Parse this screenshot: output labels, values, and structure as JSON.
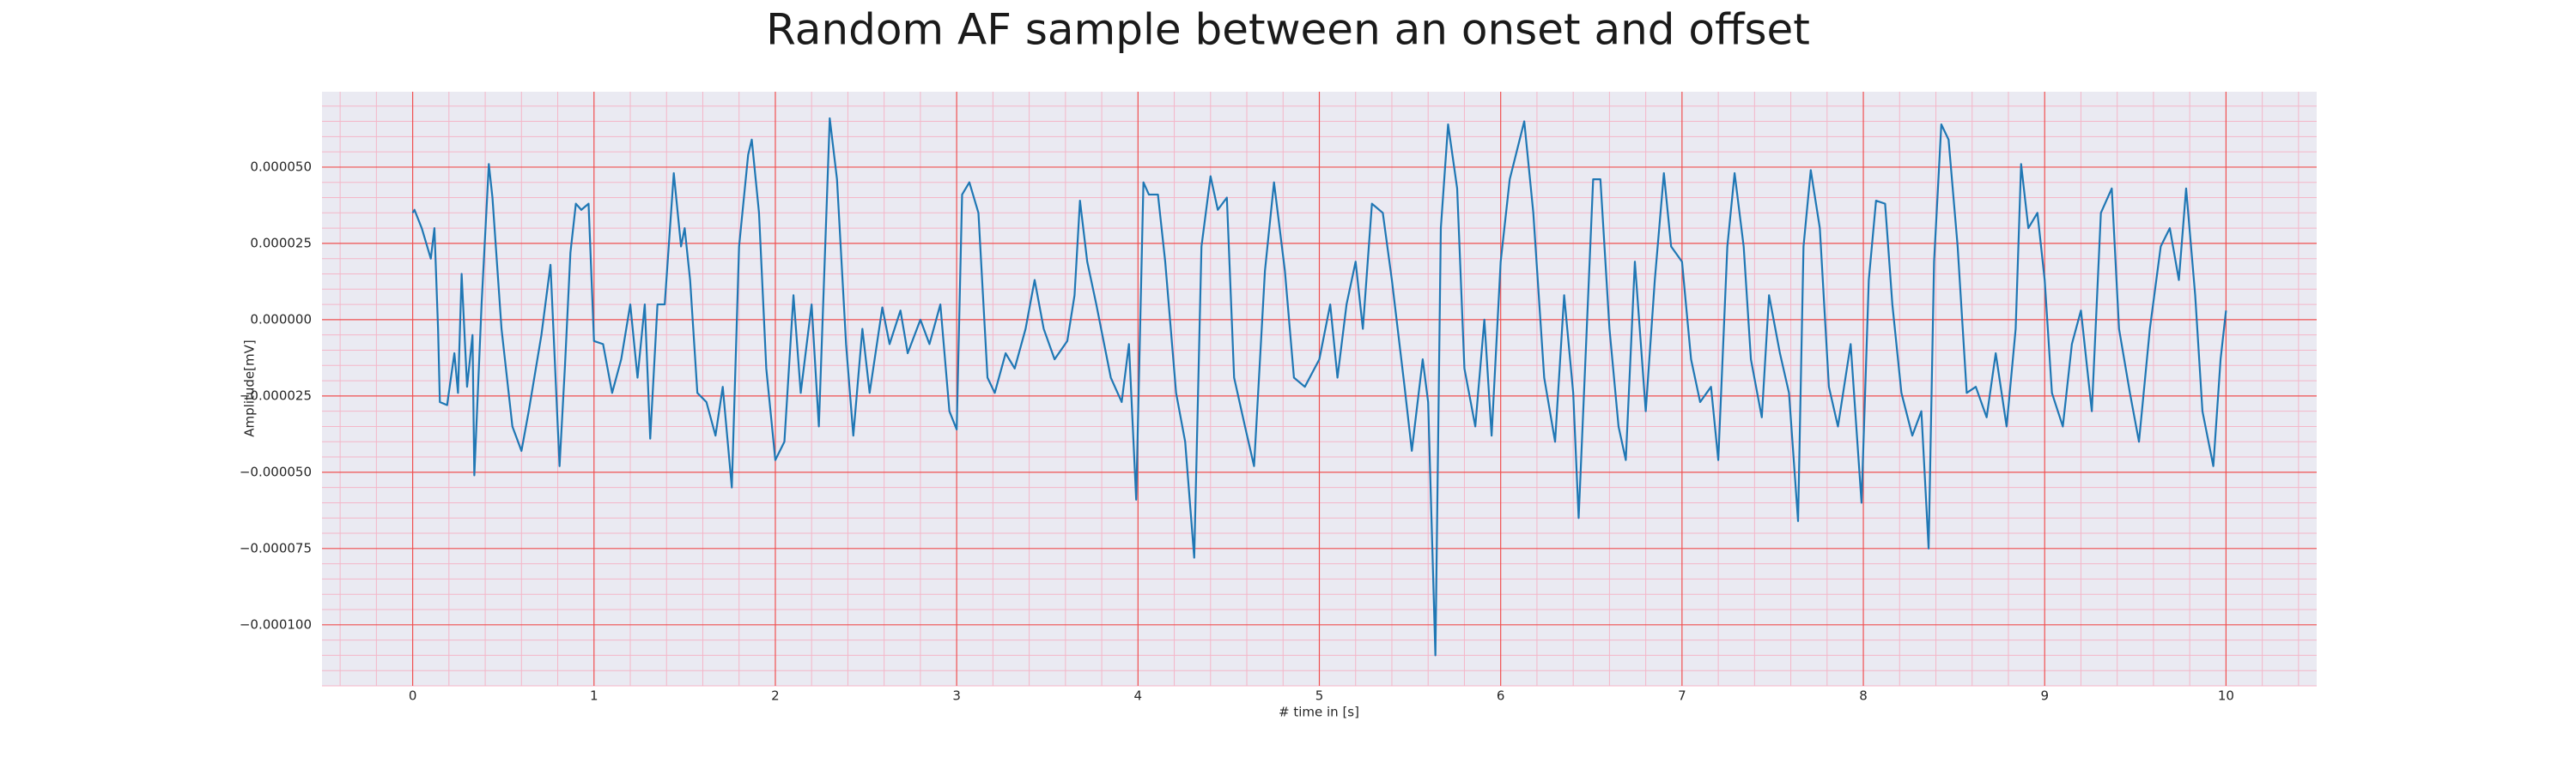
{
  "chart_data": {
    "type": "line",
    "title": "Random AF sample between an onset and offset",
    "xlabel": "# time in [s]",
    "ylabel": "Amplitude[mV]",
    "color": "#1f77b4",
    "grid": true,
    "minor_grid": true,
    "xlim": [
      -0.5,
      10.5
    ],
    "ylim": [
      -0.00012,
      7.47e-05
    ],
    "xticks": [
      0,
      1,
      2,
      3,
      4,
      5,
      6,
      7,
      8,
      9,
      10
    ],
    "yticks": [
      {
        "value": -0.0001,
        "label": "−0.000100"
      },
      {
        "value": -7.5e-05,
        "label": "−0.000075"
      },
      {
        "value": -5e-05,
        "label": "−0.000050"
      },
      {
        "value": -2.5e-05,
        "label": "−0.000025"
      },
      {
        "value": 0,
        "label": "0.000000"
      },
      {
        "value": 2.5e-05,
        "label": "0.000025"
      },
      {
        "value": 5e-05,
        "label": "0.000050"
      }
    ],
    "x": [
      0,
      0.01,
      0.05,
      0.1,
      0.12,
      0.14,
      0.15,
      0.19,
      0.23,
      0.25,
      0.27,
      0.3,
      0.33,
      0.34,
      0.38,
      0.42,
      0.44,
      0.49,
      0.55,
      0.6,
      0.64,
      0.71,
      0.76,
      0.81,
      0.84,
      0.87,
      0.9,
      0.93,
      0.97,
      1.0,
      1.05,
      1.1,
      1.15,
      1.2,
      1.24,
      1.28,
      1.31,
      1.35,
      1.39,
      1.44,
      1.48,
      1.5,
      1.53,
      1.57,
      1.62,
      1.67,
      1.71,
      1.76,
      1.8,
      1.85,
      1.87,
      1.91,
      1.95,
      2.0,
      2.05,
      2.1,
      2.14,
      2.2,
      2.24,
      2.3,
      2.34,
      2.39,
      2.43,
      2.48,
      2.52,
      2.59,
      2.63,
      2.69,
      2.73,
      2.8,
      2.85,
      2.91,
      2.96,
      3.0,
      3.03,
      3.07,
      3.12,
      3.17,
      3.21,
      3.27,
      3.32,
      3.38,
      3.43,
      3.48,
      3.54,
      3.61,
      3.65,
      3.68,
      3.72,
      3.77,
      3.85,
      3.91,
      3.95,
      3.99,
      4.03,
      4.06,
      4.11,
      4.15,
      4.21,
      4.26,
      4.31,
      4.35,
      4.4,
      4.44,
      4.49,
      4.53,
      4.59,
      4.64,
      4.7,
      4.75,
      4.81,
      4.86,
      4.92,
      5.0,
      5.06,
      5.1,
      5.15,
      5.2,
      5.24,
      5.29,
      5.35,
      5.4,
      5.47,
      5.51,
      5.57,
      5.6,
      5.64,
      5.67,
      5.71,
      5.76,
      5.8,
      5.86,
      5.91,
      5.95,
      6.0,
      6.05,
      6.13,
      6.18,
      6.24,
      6.3,
      6.35,
      6.4,
      6.43,
      6.51,
      6.55,
      6.6,
      6.65,
      6.69,
      6.74,
      6.8,
      6.85,
      6.9,
      6.94,
      7.0,
      7.05,
      7.1,
      7.16,
      7.2,
      7.25,
      7.29,
      7.34,
      7.38,
      7.44,
      7.48,
      7.54,
      7.59,
      7.64,
      7.67,
      7.71,
      7.76,
      7.81,
      7.86,
      7.93,
      7.99,
      8.03,
      8.07,
      8.12,
      8.16,
      8.21,
      8.27,
      8.32,
      8.36,
      8.39,
      8.43,
      8.47,
      8.52,
      8.57,
      8.62,
      8.68,
      8.73,
      8.79,
      8.84,
      8.87,
      8.91,
      8.96,
      9.0,
      9.04,
      9.1,
      9.15,
      9.2,
      9.26,
      9.31,
      9.37,
      9.41,
      9.47,
      9.52,
      9.58,
      9.64,
      9.69,
      9.74,
      9.78,
      9.83,
      9.87,
      9.93,
      9.97,
      10.0
    ],
    "values": [
      3.5e-05,
      3.6e-05,
      3e-05,
      2e-05,
      3e-05,
      -3e-06,
      -2.7e-05,
      -2.8e-05,
      -1.1e-05,
      -2.4e-05,
      1.5e-05,
      -2.2e-05,
      -5e-06,
      -5.1e-05,
      5e-06,
      5.1e-05,
      4e-05,
      -3e-06,
      -3.5e-05,
      -4.3e-05,
      -3e-05,
      -5e-06,
      1.8e-05,
      -4.8e-05,
      -1.5e-05,
      2.2e-05,
      3.8e-05,
      3.6e-05,
      3.8e-05,
      -7e-06,
      -8e-06,
      -2.4e-05,
      -1.3e-05,
      5e-06,
      -1.9e-05,
      5e-06,
      -3.9e-05,
      5e-06,
      5e-06,
      4.8e-05,
      2.4e-05,
      3e-05,
      1.3e-05,
      -2.4e-05,
      -2.7e-05,
      -3.8e-05,
      -2.2e-05,
      -5.5e-05,
      2.4e-05,
      5.4e-05,
      5.9e-05,
      3.5e-05,
      -1.6e-05,
      -4.6e-05,
      -4e-05,
      8e-06,
      -2.4e-05,
      5e-06,
      -3.5e-05,
      6.6e-05,
      4.6e-05,
      -8e-06,
      -3.8e-05,
      -3e-06,
      -2.4e-05,
      4e-06,
      -8e-06,
      3e-06,
      -1.1e-05,
      0,
      -8e-06,
      5e-06,
      -3e-05,
      -3.6e-05,
      4.1e-05,
      4.5e-05,
      3.5e-05,
      -1.9e-05,
      -2.4e-05,
      -1.1e-05,
      -1.6e-05,
      -3e-06,
      1.3e-05,
      -3e-06,
      -1.3e-05,
      -7e-06,
      8e-06,
      3.9e-05,
      1.9e-05,
      5e-06,
      -1.9e-05,
      -2.7e-05,
      -8e-06,
      -5.9e-05,
      4.5e-05,
      4.1e-05,
      4.1e-05,
      1.9e-05,
      -2.4e-05,
      -4e-05,
      -7.8e-05,
      2.4e-05,
      4.7e-05,
      3.6e-05,
      4e-05,
      -1.9e-05,
      -3.5e-05,
      -4.8e-05,
      1.6e-05,
      4.5e-05,
      1.6e-05,
      -1.9e-05,
      -2.2e-05,
      -1.3e-05,
      5e-06,
      -1.9e-05,
      5e-06,
      1.9e-05,
      -3e-06,
      3.8e-05,
      3.5e-05,
      1.3e-05,
      -2.2e-05,
      -4.3e-05,
      -1.3e-05,
      -2.7e-05,
      -0.00011,
      3e-05,
      6.4e-05,
      4.3e-05,
      -1.6e-05,
      -3.5e-05,
      0,
      -3.8e-05,
      1.9e-05,
      4.6e-05,
      6.5e-05,
      3.5e-05,
      -1.9e-05,
      -4e-05,
      8e-06,
      -2.4e-05,
      -6.5e-05,
      4.6e-05,
      4.6e-05,
      -3e-06,
      -3.5e-05,
      -4.6e-05,
      1.9e-05,
      -3e-05,
      1.3e-05,
      4.8e-05,
      2.4e-05,
      1.9e-05,
      -1.3e-05,
      -2.7e-05,
      -2.2e-05,
      -4.6e-05,
      2.4e-05,
      4.8e-05,
      2.4e-05,
      -1.3e-05,
      -3.2e-05,
      8e-06,
      -1.1e-05,
      -2.4e-05,
      -6.6e-05,
      2.4e-05,
      4.9e-05,
      3e-05,
      -2.2e-05,
      -3.5e-05,
      -8e-06,
      -6e-05,
      1.3e-05,
      3.9e-05,
      3.8e-05,
      5e-06,
      -2.4e-05,
      -3.8e-05,
      -3e-05,
      -7.5e-05,
      1.9e-05,
      6.4e-05,
      5.9e-05,
      2.4e-05,
      -2.4e-05,
      -2.2e-05,
      -3.2e-05,
      -1.1e-05,
      -3.5e-05,
      -3e-06,
      5.1e-05,
      3e-05,
      3.5e-05,
      1.3e-05,
      -2.4e-05,
      -3.5e-05,
      -8e-06,
      3e-06,
      -3e-05,
      3.5e-05,
      4.3e-05,
      -3e-06,
      -2.4e-05,
      -4e-05,
      -3e-06,
      2.4e-05,
      3e-05,
      1.3e-05,
      4.3e-05,
      8e-06,
      -3e-05,
      -4.8e-05,
      -1.3e-05,
      3e-06
    ]
  }
}
